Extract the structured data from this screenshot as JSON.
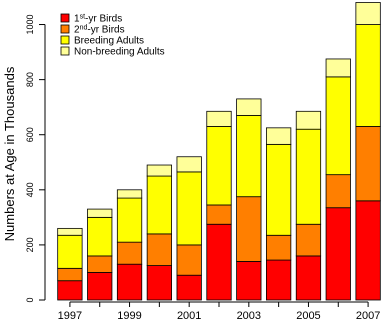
{
  "chart_data": {
    "type": "bar",
    "stacked": true,
    "title": "",
    "xlabel": "",
    "ylabel": "Numbers at Age in Thousands",
    "ylim": [
      0,
      1060
    ],
    "yticks": [
      0,
      200,
      400,
      600,
      800,
      1000
    ],
    "xtick_labels": [
      "1997",
      "1999",
      "2001",
      "2003",
      "2005",
      "2007"
    ],
    "categories": [
      "1997",
      "1998",
      "1999",
      "2000",
      "2001",
      "2002",
      "2003",
      "2004",
      "2005",
      "2006",
      "2007"
    ],
    "legend_position": "top-left",
    "series": [
      {
        "name_main": "1",
        "name_sup": "st",
        "name_rest": "-yr Birds",
        "color": "#ff0000",
        "values": [
          70,
          100,
          130,
          125,
          90,
          275,
          140,
          145,
          160,
          335,
          360
        ]
      },
      {
        "name_main": "2",
        "name_sup": "nd",
        "name_rest": "-yr Birds",
        "color": "#ff7f00",
        "values": [
          45,
          60,
          80,
          115,
          110,
          70,
          235,
          90,
          115,
          120,
          270
        ]
      },
      {
        "name": "Breeding Adults",
        "color": "#ffff00",
        "values": [
          120,
          140,
          160,
          210,
          265,
          285,
          295,
          330,
          345,
          355,
          370
        ]
      },
      {
        "name": "Non-breeding Adults",
        "color": "#ffff99",
        "values": [
          25,
          30,
          30,
          40,
          55,
          55,
          60,
          60,
          65,
          65,
          80
        ]
      }
    ]
  }
}
